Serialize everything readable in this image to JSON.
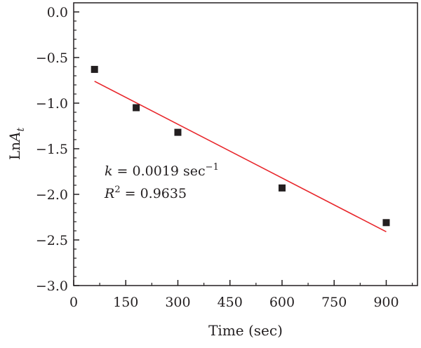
{
  "chart_data": {
    "type": "scatter",
    "xlabel": "Time (sec)",
    "ylabel": {
      "main": "Ln",
      "italic": "A",
      "subscript": "t"
    },
    "xlim": [
      0,
      990
    ],
    "ylim": [
      -3.0,
      0.1
    ],
    "x_ticks": [
      0,
      150,
      300,
      450,
      600,
      750,
      900
    ],
    "x_tick_labels": [
      "0",
      "150",
      "300",
      "450",
      "600",
      "750",
      "900"
    ],
    "y_ticks": [
      0.0,
      -0.5,
      -1.0,
      -1.5,
      -2.0,
      -2.5,
      -3.0
    ],
    "y_tick_labels": [
      "0.0",
      "−0.5",
      "−1.0",
      "−1.5",
      "−2.0",
      "−2.5",
      "−3.0"
    ],
    "grid": false,
    "series": [
      {
        "kind": "points",
        "marker": "square",
        "color": "#231f20",
        "x": [
          60,
          180,
          300,
          600,
          900
        ],
        "y": [
          -0.63,
          -1.05,
          -1.32,
          -1.93,
          -2.31
        ]
      },
      {
        "kind": "fit-line",
        "color": "#e8262b",
        "x": [
          60,
          900
        ],
        "y": [
          -0.76,
          -2.41
        ]
      }
    ],
    "annotations": {
      "k_symbol": "k",
      "k_text": " = 0.0019 sec",
      "k_superscript": "−1",
      "r_symbol": "R",
      "r_superscript": "2",
      "r_text": " = 0.9635"
    }
  }
}
